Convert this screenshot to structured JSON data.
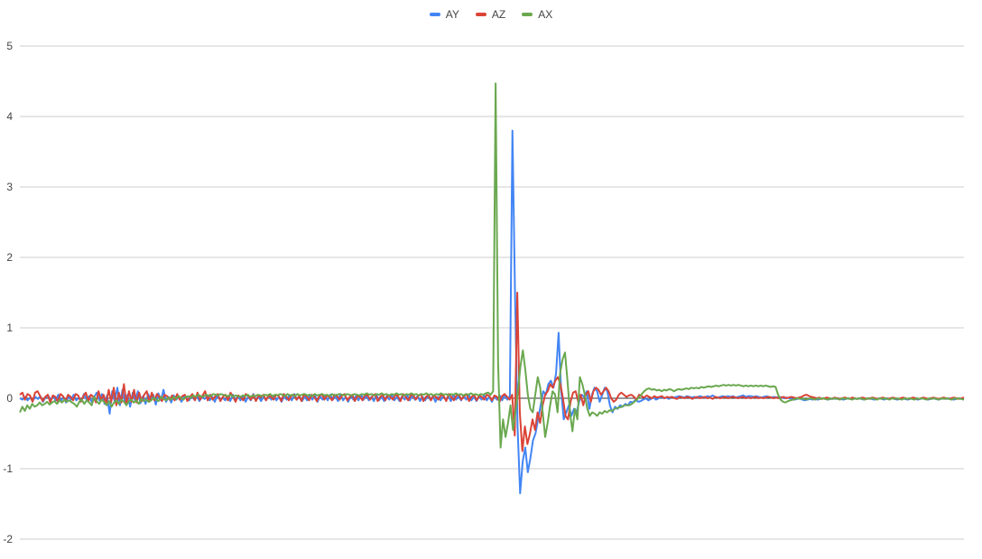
{
  "chart_data": {
    "type": "line",
    "title": "",
    "xlabel": "",
    "ylabel": "",
    "ylim": [
      -2,
      5
    ],
    "yticks": [
      "-2",
      "-1",
      "0",
      "1",
      "2",
      "3",
      "4",
      "5"
    ],
    "grid": true,
    "legend_position": "top",
    "point_count": 400,
    "series": [
      {
        "name": "AY",
        "color": "#4285f4",
        "values": [
          0,
          -0.02,
          0.02,
          -0.03,
          0.01,
          -0.04,
          0.02,
          -0.01,
          0.03,
          -0.05,
          0.01,
          0.04,
          -0.02,
          0.03,
          -0.03,
          0.05,
          -0.04,
          0.02,
          -0.06,
          0.03,
          -0.02,
          0.05,
          -0.03,
          0.01,
          -0.04,
          0.06,
          -0.02,
          0.03,
          -0.05,
          0.02,
          0.08,
          -0.03,
          0.06,
          -0.08,
          0.04,
          -0.22,
          0.1,
          -0.05,
          0.15,
          -0.1,
          0.12,
          -0.06,
          0.05,
          -0.12,
          0.08,
          -0.04,
          0.1,
          -0.07,
          0.03,
          -0.08,
          0.06,
          -0.02,
          0.05,
          -0.09,
          0.07,
          -0.03,
          0.12,
          -0.05,
          0.02,
          -0.06,
          0.04,
          -0.02,
          0.03,
          -0.05,
          0.02,
          0.01,
          -0.03,
          0.04,
          -0.02,
          0.03,
          -0.04,
          0.02,
          -0.01,
          0.03,
          -0.03,
          0.02,
          -0.05,
          0.04,
          -0.02,
          0.01,
          -0.03,
          0.02,
          -0.04,
          0.05,
          -0.02,
          0.03,
          -0.03,
          0.04,
          -0.05,
          0.02,
          -0.03,
          0.06,
          -0.02,
          0.03,
          -0.04,
          0.02,
          -0.03,
          0.05,
          -0.02,
          0.04,
          -0.03,
          0.02,
          -0.05,
          0.03,
          -0.02,
          0.04,
          -0.03,
          0.06,
          -0.02,
          0.03,
          -0.04,
          0.02,
          -0.03,
          0.05,
          -0.02,
          0.04,
          -0.05,
          0.03,
          -0.02,
          0.04,
          -0.03,
          0.05,
          -0.02,
          0.03,
          -0.04,
          0.06,
          -0.03,
          0.02,
          -0.05,
          0.04,
          -0.02,
          0.03,
          -0.03,
          0.05,
          -0.02,
          0.04,
          -0.03,
          0.02,
          -0.04,
          0.05,
          -0.03,
          0.02,
          -0.04,
          0.03,
          -0.02,
          0.05,
          -0.03,
          0.02,
          -0.04,
          0.03,
          -0.02,
          0.04,
          -0.03,
          0.05,
          -0.02,
          0.03,
          -0.04,
          0.02,
          -0.03,
          0.04,
          -0.02,
          0.03,
          -0.05,
          0.02,
          -0.03,
          0.04,
          -0.02,
          0.03,
          -0.04,
          0.05,
          -0.02,
          0.03,
          -0.03,
          0.04,
          -0.02,
          0.05,
          -0.03,
          0.02,
          -0.04,
          0.03,
          -0.02,
          0.04,
          -0.03,
          0.02,
          -0.05,
          0.03,
          -0.02,
          0.04,
          -0.03,
          0.05,
          -0.02,
          0.03,
          3.8,
          1.5,
          -0.4,
          -1.35,
          -0.9,
          -0.7,
          -1.05,
          -0.85,
          -0.6,
          -0.5,
          -0.3,
          -0.1,
          0.1,
          0.05,
          0.2,
          0.25,
          0.15,
          0.35,
          0.93,
          0.1,
          -0.3,
          -0.2,
          -0.1,
          -0.25,
          -0.15,
          -0.2,
          -0.05,
          0.05,
          0.02,
          0.1,
          -0.15,
          0.05,
          0.15,
          0.1,
          -0.05,
          0.05,
          0.15,
          0.1,
          -0.1,
          -0.2,
          -0.12,
          -0.15,
          -0.1,
          -0.12,
          -0.08,
          -0.1,
          -0.05,
          -0.06,
          -0.02,
          -0.05,
          -0.04,
          -0.02,
          0,
          -0.03,
          -0.01,
          0.01,
          -0.02,
          0,
          0.02,
          0,
          0.01,
          -0.01,
          0.02,
          0.01,
          0.02,
          0.03,
          0.02,
          0.01,
          0.03,
          0.02,
          0.01,
          0.02,
          0.01,
          0.03,
          0.02,
          0.01,
          0.03,
          0.02,
          0.04,
          0.02,
          0.01,
          0.02,
          0.03,
          0.02,
          0.03,
          0.02,
          0.03,
          0.01,
          0.02,
          0.03,
          0.04,
          0.02,
          0.03,
          0.03,
          0.02,
          0.03,
          0.02,
          0.01,
          0.02,
          0.03,
          0.02,
          0.01,
          0.02,
          0.01,
          0.02,
          0.01,
          0,
          0.01,
          0,
          -0.01,
          -0.02,
          -0.01,
          0,
          -0.02,
          -0.03,
          -0.02,
          -0.01,
          -0.02,
          -0.01,
          -0.02,
          -0.01,
          0,
          -0.01,
          -0.02,
          -0.01,
          0,
          -0.01,
          0,
          -0.01,
          -0.02,
          -0.01,
          0,
          -0.01,
          0,
          -0.01,
          0,
          -0.01,
          -0.02,
          -0.01,
          0,
          -0.01,
          -0.02,
          -0.01,
          0,
          -0.01,
          -0.02,
          0,
          -0.01,
          0,
          -0.01,
          -0.02,
          -0.01,
          0,
          -0.01,
          -0.02,
          -0.01,
          0,
          -0.01,
          -0.02,
          -0.01,
          0,
          -0.01,
          -0.02,
          -0.01,
          0,
          -0.01,
          -0.02,
          -0.01,
          0,
          -0.01,
          0,
          -0.01,
          -0.02,
          -0.01,
          0,
          -0.01,
          -0.02
        ]
      },
      {
        "name": "AZ",
        "color": "#db4437",
        "values": [
          0.05,
          0.08,
          -0.02,
          0.06,
          0.04,
          -0.05,
          0.08,
          0.1,
          0.03,
          -0.04,
          0.02,
          0.05,
          -0.06,
          0.04,
          0.02,
          -0.05,
          0.06,
          0.03,
          -0.04,
          0.05,
          0.02,
          -0.03,
          0.06,
          0.04,
          -0.05,
          0.03,
          0.08,
          -0.04,
          0.05,
          0.02,
          -0.06,
          0.1,
          -0.03,
          0.05,
          -0.08,
          0.12,
          -0.05,
          0.15,
          -0.1,
          0.08,
          -0.06,
          0.2,
          -0.08,
          0.1,
          -0.05,
          0.12,
          -0.06,
          0.08,
          -0.04,
          0.05,
          0.1,
          -0.05,
          0.08,
          -0.03,
          0.06,
          0.02,
          -0.04,
          0.05,
          0.03,
          -0.02,
          0.04,
          -0.03,
          0.06,
          -0.02,
          0.03,
          0.05,
          -0.04,
          0.02,
          0.06,
          -0.03,
          0.08,
          -0.02,
          0.04,
          0.1,
          -0.03,
          0.05,
          -0.02,
          0.03,
          0.06,
          -0.04,
          0.02,
          0.05,
          -0.03,
          0.08,
          0.02,
          -0.05,
          0.04,
          0.02,
          -0.03,
          0.06,
          0.03,
          -0.02,
          0.05,
          -0.04,
          0.03,
          0.02,
          0.05,
          -0.03,
          0.04,
          0.02,
          -0.02,
          0.05,
          0.03,
          -0.04,
          0.06,
          0.02,
          -0.03,
          0.04,
          0.05,
          -0.02,
          0.03,
          -0.04,
          0.06,
          0.02,
          -0.03,
          0.05,
          0.02,
          -0.04,
          0.03,
          0.06,
          -0.02,
          0.04,
          0.02,
          -0.03,
          0.05,
          0.03,
          -0.02,
          0.04,
          0.06,
          -0.03,
          0.02,
          0.05,
          -0.04,
          0.03,
          0.02,
          -0.03,
          0.05,
          0.04,
          -0.02,
          0.03,
          0.06,
          -0.04,
          0.02,
          0.05,
          -0.03,
          0.04,
          0.02,
          -0.02,
          0.05,
          0.03,
          -0.04,
          0.06,
          0.02,
          -0.03,
          0.04,
          0.05,
          -0.02,
          0.03,
          0.06,
          -0.04,
          0.02,
          0.05,
          -0.03,
          0.04,
          0.02,
          -0.02,
          0.05,
          0.03,
          -0.04,
          0.06,
          0.02,
          -0.03,
          0.04,
          0.05,
          -0.02,
          0.03,
          0.06,
          -0.04,
          0.02,
          0.05,
          -0.03,
          0.04,
          0.02,
          -0.02,
          0.05,
          0.03,
          -0.03,
          0.04,
          0.02,
          -0.05,
          0.03,
          0.06,
          0.02,
          -0.02,
          0.05,
          -0.53,
          1.5,
          -0.2,
          -0.75,
          -0.4,
          -0.65,
          -0.5,
          -0.3,
          -0.45,
          -0.2,
          -0.35,
          -0.1,
          0.05,
          0.1,
          0.2,
          0.15,
          0.25,
          0.3,
          0.2,
          0,
          -0.25,
          -0.3,
          -0.05,
          0.08,
          0.1,
          -0.05,
          0.05,
          -0.1,
          0.05,
          0.1,
          -0.05,
          0.1,
          0.15,
          0.12,
          0.05,
          0.1,
          0.15,
          0.1,
          0,
          -0.05,
          -0.02,
          0.05,
          0.08,
          0.05,
          0.02,
          0.04,
          0.05,
          0.02,
          -0.02,
          0.05,
          0.03,
          0.01,
          0.04,
          0.02,
          0,
          0.03,
          0.01,
          0.02,
          0.03,
          0,
          0.02,
          0.01,
          0.02,
          0,
          -0.01,
          0.02,
          0.01,
          0,
          0.02,
          0.01,
          -0.01,
          0.01,
          0.02,
          0,
          0.01,
          0.02,
          0,
          0.01,
          -0.01,
          0.02,
          0.01,
          0,
          0.01,
          0.02,
          0,
          0.01,
          0.02,
          0.01,
          0,
          0.01,
          0.02,
          0,
          0.01,
          0,
          0.01,
          0.02,
          0,
          0.01,
          0,
          0.01,
          0.02,
          0.01,
          0,
          0.01,
          0,
          0.01,
          0.02,
          0,
          0.01,
          0.02,
          0.01,
          0,
          0.01,
          0.02,
          0.04,
          0.05,
          0.03,
          0.02,
          0.01,
          0,
          0.01,
          -0.01,
          0,
          0.01,
          0,
          -0.01,
          0.01,
          0,
          -0.01,
          0,
          0.01,
          0,
          -0.01,
          0.01,
          0,
          -0.01,
          0,
          0.01,
          0,
          -0.01,
          0,
          0.01,
          0,
          -0.01,
          0,
          0.01,
          0,
          -0.01,
          0,
          0.01,
          0,
          -0.01,
          0,
          0.01,
          0,
          -0.01,
          0,
          0.01,
          0,
          -0.01,
          0,
          0.01,
          0,
          -0.01,
          0,
          0.01,
          0,
          -0.01,
          0,
          0.01,
          0,
          -0.01,
          0,
          0.01,
          0,
          -0.01,
          0,
          0.01
        ]
      },
      {
        "name": "AX",
        "color": "#6aa84f",
        "values": [
          -0.2,
          -0.12,
          -0.18,
          -0.1,
          -0.15,
          -0.08,
          -0.12,
          -0.1,
          -0.06,
          -0.1,
          -0.08,
          -0.05,
          -0.09,
          -0.06,
          -0.04,
          -0.08,
          -0.03,
          -0.06,
          -0.02,
          -0.05,
          -0.03,
          -0.06,
          -0.08,
          -0.12,
          -0.05,
          -0.02,
          -0.08,
          -0.03,
          -0.06,
          -0.1,
          0.02,
          -0.04,
          -0.08,
          -0.02,
          -0.05,
          -0.1,
          -0.04,
          -0.12,
          -0.06,
          -0.03,
          -0.08,
          -0.02,
          -0.05,
          -0.1,
          -0.04,
          -0.02,
          -0.06,
          -0.03,
          -0.08,
          -0.01,
          -0.04,
          -0.02,
          -0.05,
          -0.03,
          0.01,
          -0.02,
          -0.04,
          0.02,
          -0.01,
          -0.03,
          0.01,
          -0.02,
          0.02,
          -0.01,
          0.03,
          0.01,
          -0.02,
          0.02,
          0.03,
          0.01,
          0.04,
          0.02,
          0.05,
          0.03,
          0.02,
          0.05,
          0.04,
          0.03,
          0.06,
          0.05,
          0.04,
          0.06,
          0.05,
          0.04,
          0.03,
          0.05,
          0.02,
          0.04,
          0.03,
          0.02,
          0.04,
          0.03,
          0.05,
          0.02,
          0.04,
          0.03,
          0.05,
          0.04,
          0.03,
          0.05,
          0.04,
          0.06,
          0.03,
          0.05,
          0.04,
          0.06,
          0.05,
          0.03,
          0.06,
          0.04,
          0.05,
          0.03,
          0.06,
          0.04,
          0.05,
          0.06,
          0.04,
          0.05,
          0.03,
          0.06,
          0.04,
          0.05,
          0.06,
          0.04,
          0.05,
          0.03,
          0.06,
          0.04,
          0.05,
          0.06,
          0.05,
          0.04,
          0.06,
          0.05,
          0.04,
          0.06,
          0.05,
          0.04,
          0.06,
          0.05,
          0.07,
          0.05,
          0.06,
          0.04,
          0.06,
          0.05,
          0.07,
          0.05,
          0.06,
          0.04,
          0.06,
          0.05,
          0.07,
          0.05,
          0.06,
          0.04,
          0.06,
          0.05,
          0.07,
          0.05,
          0.06,
          0.04,
          0.06,
          0.05,
          0.07,
          0.05,
          0.06,
          0.04,
          0.06,
          0.05,
          0.07,
          0.05,
          0.06,
          0.04,
          0.06,
          0.05,
          0.07,
          0.05,
          0.06,
          0.04,
          0.06,
          0.05,
          0.07,
          0.05,
          0.06,
          0.04,
          0.06,
          0.05,
          0.07,
          0.08,
          0.05,
          0.1,
          4.47,
          0.5,
          -0.7,
          -0.3,
          -0.55,
          -0.35,
          -0.1,
          -0.45,
          -0.2,
          0.1,
          0.45,
          0.68,
          0.4,
          0.05,
          -0.15,
          -0.2,
          0.05,
          0.3,
          0.15,
          -0.2,
          -0.55,
          -0.35,
          -0.1,
          0.1,
          0.05,
          -0.2,
          0.35,
          0.55,
          0.65,
          0.25,
          -0.2,
          -0.47,
          -0.15,
          -0.3,
          0.3,
          0.2,
          0.05,
          -0.15,
          -0.25,
          -0.2,
          -0.22,
          -0.25,
          -0.2,
          -0.22,
          -0.18,
          -0.2,
          -0.17,
          -0.18,
          -0.15,
          -0.14,
          -0.13,
          -0.12,
          -0.1,
          -0.1,
          -0.1,
          -0.08,
          -0.05,
          -0.02,
          0.02,
          0.06,
          0.1,
          0.13,
          0.14,
          0.12,
          0.13,
          0.11,
          0.12,
          0.1,
          0.12,
          0.11,
          0.13,
          0.12,
          0.1,
          0.12,
          0.13,
          0.12,
          0.13,
          0.14,
          0.13,
          0.15,
          0.14,
          0.15,
          0.14,
          0.16,
          0.15,
          0.16,
          0.17,
          0.16,
          0.17,
          0.18,
          0.17,
          0.18,
          0.19,
          0.18,
          0.19,
          0.18,
          0.19,
          0.18,
          0.19,
          0.18,
          0.17,
          0.18,
          0.17,
          0.18,
          0.17,
          0.18,
          0.17,
          0.18,
          0.17,
          0.18,
          0.17,
          0.16,
          0.17,
          0.16,
          0.05,
          -0.02,
          -0.05,
          -0.06,
          -0.04,
          -0.03,
          -0.02,
          -0.01,
          0,
          -0.01,
          0,
          -0.02,
          -0.01,
          0,
          -0.01,
          -0.02,
          0,
          -0.01,
          0,
          -0.01,
          -0.02,
          0,
          -0.01,
          0,
          -0.01,
          -0.02,
          0,
          -0.01,
          0,
          -0.01,
          -0.02,
          0,
          -0.01,
          0,
          -0.01,
          -0.02,
          0,
          -0.01,
          0,
          -0.01,
          -0.02,
          0,
          -0.01,
          0,
          -0.01,
          -0.02,
          0,
          -0.01,
          0,
          -0.01,
          -0.02,
          0,
          -0.01,
          0,
          -0.01,
          -0.02,
          0,
          -0.01,
          0,
          -0.01,
          -0.02,
          0,
          -0.01,
          0,
          -0.01,
          -0.02,
          0,
          -0.01,
          0,
          -0.01,
          -0.02,
          0,
          -0.01,
          0,
          -0.01,
          -0.02
        ]
      }
    ]
  }
}
